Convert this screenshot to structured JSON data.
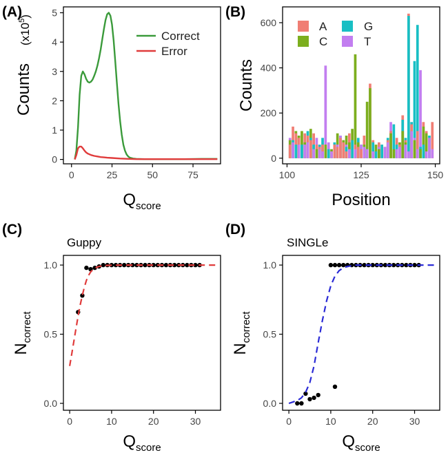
{
  "chart_data": [
    {
      "panel": "(A)",
      "type": "line",
      "xlabel": "Q",
      "xlabel_sub": "score",
      "ylabel": "Counts",
      "ylabel_unit": "(x10",
      "ylabel_exp": "5",
      "ylabel_close": ")",
      "xlim": [
        -5,
        92
      ],
      "ylim": [
        -0.15,
        5.2
      ],
      "xticks": [
        0,
        25,
        50,
        75
      ],
      "yticks": [
        0,
        1,
        2,
        3,
        4,
        5
      ],
      "legend_position": "top-right",
      "grid": false,
      "series": [
        {
          "name": "Correct",
          "color": "#3a9a3a",
          "x": [
            2,
            3,
            4,
            5,
            6,
            7,
            8,
            9,
            10,
            11,
            12,
            13,
            14,
            15,
            16,
            17,
            18,
            19,
            20,
            21,
            22,
            23,
            24,
            25,
            26,
            27,
            28,
            29,
            30,
            31,
            32,
            33,
            34,
            35,
            36,
            38,
            40,
            45,
            50,
            60,
            70,
            80,
            90
          ],
          "y": [
            0,
            0.3,
            1.1,
            2.2,
            2.85,
            3.0,
            2.9,
            2.75,
            2.65,
            2.62,
            2.65,
            2.72,
            2.85,
            3.0,
            3.2,
            3.45,
            3.75,
            4.1,
            4.45,
            4.75,
            4.95,
            5.0,
            4.9,
            4.6,
            4.05,
            3.35,
            2.6,
            1.9,
            1.3,
            0.85,
            0.5,
            0.3,
            0.17,
            0.1,
            0.06,
            0.03,
            0.02,
            0.01,
            0.01,
            0.01,
            0.01,
            0.02,
            0.02
          ]
        },
        {
          "name": "Error",
          "color": "#e03b3b",
          "x": [
            2,
            3,
            4,
            5,
            6,
            7,
            8,
            9,
            10,
            12,
            14,
            16,
            18,
            20,
            22,
            25,
            30,
            35,
            40,
            45,
            50,
            60,
            70,
            80,
            90
          ],
          "y": [
            0,
            0.15,
            0.38,
            0.44,
            0.44,
            0.38,
            0.3,
            0.24,
            0.2,
            0.15,
            0.12,
            0.1,
            0.08,
            0.07,
            0.06,
            0.05,
            0.03,
            0.02,
            0.01,
            0.01,
            0.01,
            0.01,
            0.01,
            0.01,
            0.01
          ]
        }
      ]
    },
    {
      "panel": "(B)",
      "type": "bar",
      "stacked": false,
      "xlabel": "Position",
      "ylabel": "Counts",
      "xlim": [
        98.5,
        151.5
      ],
      "ylim": [
        -25,
        670
      ],
      "xticks": [
        100,
        125,
        150
      ],
      "yticks": [
        0,
        200,
        400,
        600
      ],
      "legend_position": "top-left",
      "grid": false,
      "series": [
        {
          "name": "A",
          "color": "#f07e74",
          "x": [
            101,
            102,
            103,
            104,
            106,
            107,
            108,
            109,
            110,
            111,
            112,
            114,
            116,
            117,
            118,
            119,
            120,
            121,
            123,
            124,
            125,
            126,
            128,
            129,
            131,
            132,
            134,
            135,
            137,
            138,
            139,
            140,
            141,
            142,
            143,
            144,
            146,
            147,
            149
          ],
          "y": [
            60,
            140,
            110,
            90,
            110,
            100,
            80,
            110,
            60,
            50,
            60,
            40,
            60,
            50,
            90,
            70,
            30,
            110,
            60,
            50,
            40,
            100,
            330,
            80,
            70,
            60,
            80,
            120,
            90,
            60,
            190,
            80,
            640,
            150,
            80,
            120,
            160,
            120,
            160
          ]
        },
        {
          "name": "C",
          "color": "#7cae1e",
          "x": [
            101,
            103,
            104,
            105,
            106,
            108,
            110,
            113,
            115,
            117,
            119,
            120,
            121,
            122,
            123,
            124,
            126,
            127,
            128,
            130,
            131,
            133,
            135,
            136,
            138,
            139,
            140,
            142,
            143,
            145,
            146,
            147
          ],
          "y": [
            80,
            120,
            100,
            120,
            70,
            130,
            40,
            60,
            40,
            110,
            80,
            100,
            70,
            130,
            460,
            70,
            60,
            250,
            310,
            60,
            40,
            50,
            110,
            40,
            70,
            120,
            70,
            120,
            80,
            40,
            140,
            110
          ]
        },
        {
          "name": "G",
          "color": "#18bfc4",
          "x": [
            102,
            103,
            105,
            107,
            108,
            109,
            111,
            112,
            114,
            116,
            118,
            120,
            122,
            124,
            125,
            127,
            129,
            130,
            132,
            134,
            136,
            137,
            139,
            140,
            141,
            142,
            143,
            144,
            145,
            146,
            148
          ],
          "y": [
            80,
            60,
            60,
            120,
            90,
            60,
            60,
            90,
            40,
            70,
            100,
            50,
            80,
            90,
            60,
            40,
            70,
            30,
            60,
            90,
            150,
            60,
            170,
            90,
            630,
            160,
            430,
            590,
            50,
            60,
            100
          ]
        },
        {
          "name": "T",
          "color": "#c27ef0",
          "x": [
            101,
            102,
            104,
            106,
            107,
            109,
            110,
            111,
            112,
            113,
            114,
            115,
            117,
            118,
            120,
            121,
            123,
            125,
            126,
            127,
            129,
            131,
            133,
            134,
            135,
            137,
            138,
            140,
            141,
            142,
            143,
            144,
            145,
            147,
            148,
            149
          ],
          "y": [
            90,
            70,
            60,
            60,
            70,
            40,
            90,
            40,
            30,
            410,
            70,
            30,
            60,
            100,
            60,
            40,
            40,
            60,
            50,
            40,
            30,
            50,
            50,
            70,
            160,
            40,
            50,
            60,
            30,
            120,
            90,
            40,
            390,
            30,
            90,
            40
          ]
        }
      ]
    },
    {
      "panel": "(C)",
      "type": "scatter",
      "subtitle": "Guppy",
      "xlabel": "Q",
      "xlabel_sub": "score",
      "ylabel": "N",
      "ylabel_sub": "correct",
      "xlim": [
        -1.5,
        36
      ],
      "ylim": [
        -0.05,
        1.07
      ],
      "xticks": [
        0,
        10,
        20,
        30
      ],
      "yticks": [
        0.0,
        0.5,
        1.0
      ],
      "grid": false,
      "points": {
        "color": "#000000",
        "x": [
          2,
          3,
          4,
          5,
          6,
          7,
          8,
          9,
          10,
          11,
          12,
          13,
          14,
          15,
          16,
          17,
          18,
          19,
          20,
          21,
          22,
          23,
          24,
          25,
          26,
          27,
          28,
          29,
          30,
          31
        ],
        "y": [
          0.66,
          0.78,
          0.98,
          0.97,
          0.98,
          0.99,
          1.0,
          1.0,
          1.0,
          1.0,
          1.0,
          1.0,
          1.0,
          1.0,
          1.0,
          1.0,
          1.0,
          1.0,
          1.0,
          1.0,
          1.0,
          1.0,
          1.0,
          1.0,
          1.0,
          1.0,
          1.0,
          1.0,
          1.0,
          1.0
        ]
      },
      "fit": {
        "color": "#e03b3b",
        "style": "dashed",
        "x": [
          0,
          0.5,
          1,
          1.5,
          2,
          2.5,
          3,
          3.5,
          4,
          4.5,
          5,
          5.5,
          6,
          7,
          8,
          9,
          10,
          12,
          15,
          20,
          25,
          30,
          35
        ],
        "y": [
          0.27,
          0.36,
          0.45,
          0.54,
          0.63,
          0.71,
          0.78,
          0.84,
          0.89,
          0.925,
          0.95,
          0.966,
          0.978,
          0.99,
          0.995,
          0.998,
          0.999,
          1.0,
          1.0,
          1.0,
          1.0,
          1.0,
          1.0
        ]
      }
    },
    {
      "panel": "(D)",
      "type": "scatter",
      "subtitle": "SINGLe",
      "xlabel": "Q",
      "xlabel_sub": "score",
      "ylabel": "N",
      "ylabel_sub": "correct",
      "xlim": [
        -1.5,
        36
      ],
      "ylim": [
        -0.05,
        1.07
      ],
      "xticks": [
        0,
        10,
        20,
        30
      ],
      "yticks": [
        0.0,
        0.5,
        1.0
      ],
      "grid": false,
      "points": {
        "color": "#000000",
        "x": [
          2,
          3,
          4,
          5,
          6,
          7,
          11,
          10,
          11,
          12,
          13,
          14,
          15,
          16,
          17,
          18,
          19,
          20,
          21,
          22,
          23,
          24,
          25,
          26,
          27,
          28,
          29,
          30,
          31
        ],
        "y": [
          0.0,
          0.0,
          0.07,
          0.03,
          0.04,
          0.06,
          0.12,
          1.0,
          1.0,
          1.0,
          1.0,
          1.0,
          1.0,
          1.0,
          1.0,
          1.0,
          1.0,
          1.0,
          1.0,
          1.0,
          1.0,
          1.0,
          1.0,
          1.0,
          1.0,
          1.0,
          1.0,
          1.0,
          1.0
        ]
      },
      "fit": {
        "color": "#2b2bd6",
        "style": "dashed",
        "x": [
          0,
          1,
          2,
          3,
          4,
          5,
          6,
          7,
          8,
          9,
          10,
          11,
          12,
          13,
          14,
          16,
          18,
          20,
          25,
          30,
          35
        ],
        "y": [
          0.0,
          0.01,
          0.02,
          0.04,
          0.08,
          0.15,
          0.27,
          0.44,
          0.6,
          0.74,
          0.85,
          0.92,
          0.96,
          0.98,
          0.99,
          1.0,
          1.0,
          1.0,
          1.0,
          1.0,
          1.0
        ]
      }
    }
  ]
}
